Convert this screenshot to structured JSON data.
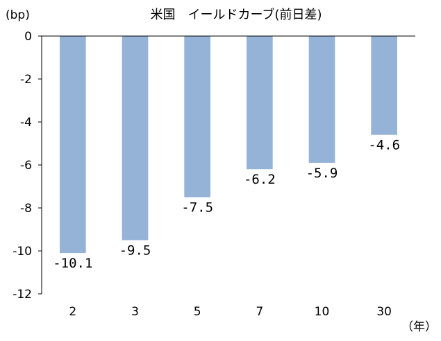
{
  "chart_data": {
    "type": "bar",
    "title": "米国　イールドカーブ(前日差)",
    "ylabel": "(bp)",
    "xlabel": "（年）",
    "categories": [
      "2",
      "3",
      "5",
      "7",
      "10",
      "30"
    ],
    "values": [
      -10.1,
      -9.5,
      -7.5,
      -6.2,
      -5.9,
      -4.6
    ],
    "data_labels": [
      "-10.1",
      "-9.5",
      "-7.5",
      "-6.2",
      "-5.9",
      "-4.6"
    ],
    "yticks": [
      "0",
      "-2",
      "-4",
      "-6",
      "-8",
      "-10",
      "-12"
    ],
    "ylim": [
      -12,
      0
    ],
    "grid": false,
    "bar_color": "#95b3d7",
    "axis_color": "#000000"
  }
}
